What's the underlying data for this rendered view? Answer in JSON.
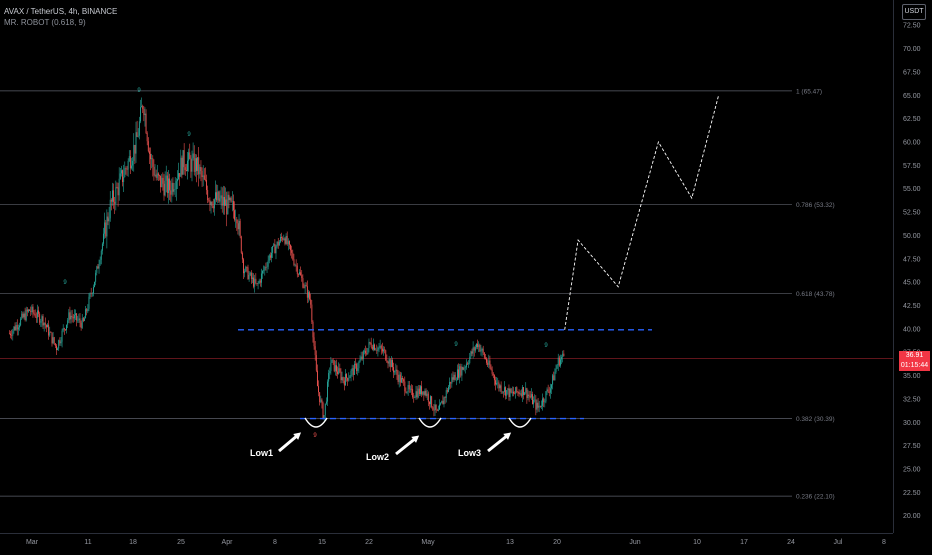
{
  "header": {
    "symbol_line": "AVAX / TetherUS, 4h, BINANCE",
    "indicator_line": "MR. ROBOT (0.618, 9)"
  },
  "currency_button": "USDT",
  "current_price": {
    "price": "36.91",
    "countdown": "01:15:44"
  },
  "colors": {
    "background": "#000000",
    "up": "#26a69a",
    "down": "#ef5350",
    "range_line": "#2962ff",
    "fib_line": "#5d606b",
    "axis_text": "#9598a1",
    "price_tag": "#f23645"
  },
  "price_axis": {
    "labels": [
      "72.50",
      "70.00",
      "67.50",
      "65.00",
      "62.50",
      "60.00",
      "57.50",
      "55.00",
      "52.50",
      "50.00",
      "47.50",
      "45.00",
      "42.50",
      "40.00",
      "37.50",
      "35.00",
      "32.50",
      "30.00",
      "27.50",
      "25.00",
      "22.50",
      "20.00"
    ]
  },
  "time_axis": {
    "labels": [
      "Mar",
      "11",
      "18",
      "25",
      "Apr",
      "8",
      "15",
      "22",
      "May",
      "13",
      "20",
      "Jun",
      "10",
      "17",
      "24",
      "Jul",
      "8"
    ]
  },
  "fib_levels": [
    {
      "label": "1 (65.47)",
      "price": 65.47
    },
    {
      "label": "0.786 (53.32)",
      "price": 53.32
    },
    {
      "label": "0.618 (43.78)",
      "price": 43.78
    },
    {
      "label": "0.382 (30.39)",
      "price": 30.39
    },
    {
      "label": "0.236 (22.10)",
      "price": 22.1
    }
  ],
  "annotations": {
    "lows": [
      "Low1",
      "Low2",
      "Low3"
    ],
    "count_markers": [
      "9",
      "9",
      "9",
      "9",
      "9",
      "9"
    ]
  },
  "range_lines": {
    "resistance": 39.9,
    "support": 30.4
  },
  "chart_data": {
    "type": "candlestick",
    "interval": "4h",
    "symbol": "AVAX / TetherUS",
    "exchange": "BINANCE",
    "price_range": [
      18.5,
      73.5
    ],
    "path_points": [
      {
        "x": "Feb 27",
        "y": 39.5
      },
      {
        "x": "Mar 1",
        "y": 42.0
      },
      {
        "x": "Mar 3",
        "y": 41.0
      },
      {
        "x": "Mar 5",
        "y": 38.0
      },
      {
        "x": "Mar 7",
        "y": 41.5
      },
      {
        "x": "Mar 9",
        "y": 40.5
      },
      {
        "x": "Mar 11",
        "y": 46.0
      },
      {
        "x": "Mar 13",
        "y": 53.0
      },
      {
        "x": "Mar 15",
        "y": 56.5
      },
      {
        "x": "Mar 17",
        "y": 60.0
      },
      {
        "x": "Mar 18",
        "y": 64.5
      },
      {
        "x": "Mar 19",
        "y": 58.5
      },
      {
        "x": "Mar 20",
        "y": 56.0
      },
      {
        "x": "Mar 22",
        "y": 55.0
      },
      {
        "x": "Mar 24",
        "y": 58.0
      },
      {
        "x": "Mar 26",
        "y": 57.5
      },
      {
        "x": "Mar 28",
        "y": 54.0
      },
      {
        "x": "Mar 30",
        "y": 53.5
      },
      {
        "x": "Apr 1",
        "y": 52.5
      },
      {
        "x": "Apr 2",
        "y": 46.5
      },
      {
        "x": "Apr 4",
        "y": 44.5
      },
      {
        "x": "Apr 6",
        "y": 48.0
      },
      {
        "x": "Apr 8",
        "y": 50.0
      },
      {
        "x": "Apr 10",
        "y": 46.5
      },
      {
        "x": "Apr 12",
        "y": 43.0
      },
      {
        "x": "Apr 13",
        "y": 34.0
      },
      {
        "x": "Apr 14",
        "y": 30.5
      },
      {
        "x": "Apr 15",
        "y": 36.5
      },
      {
        "x": "Apr 17",
        "y": 34.5
      },
      {
        "x": "Apr 19",
        "y": 36.0
      },
      {
        "x": "Apr 21",
        "y": 38.5
      },
      {
        "x": "Apr 23",
        "y": 37.5
      },
      {
        "x": "Apr 25",
        "y": 35.0
      },
      {
        "x": "Apr 27",
        "y": 33.0
      },
      {
        "x": "Apr 29",
        "y": 33.5
      },
      {
        "x": "May 1",
        "y": 30.8
      },
      {
        "x": "May 3",
        "y": 34.5
      },
      {
        "x": "May 5",
        "y": 36.0
      },
      {
        "x": "May 7",
        "y": 38.5
      },
      {
        "x": "May 8",
        "y": 37.0
      },
      {
        "x": "May 10",
        "y": 34.0
      },
      {
        "x": "May 12",
        "y": 33.0
      },
      {
        "x": "May 14",
        "y": 33.5
      },
      {
        "x": "May 16",
        "y": 31.5
      },
      {
        "x": "May 18",
        "y": 34.0
      },
      {
        "x": "May 19",
        "y": 36.5
      },
      {
        "x": "May 20",
        "y": 37.2
      }
    ],
    "projection": [
      {
        "x": "May 20",
        "y": 39.9
      },
      {
        "x": "May 22",
        "y": 49.5
      },
      {
        "x": "May 28",
        "y": 44.5
      },
      {
        "x": "Jun 3",
        "y": 60.0
      },
      {
        "x": "Jun 8",
        "y": 54.0
      },
      {
        "x": "Jun 12",
        "y": 65.0
      }
    ]
  }
}
